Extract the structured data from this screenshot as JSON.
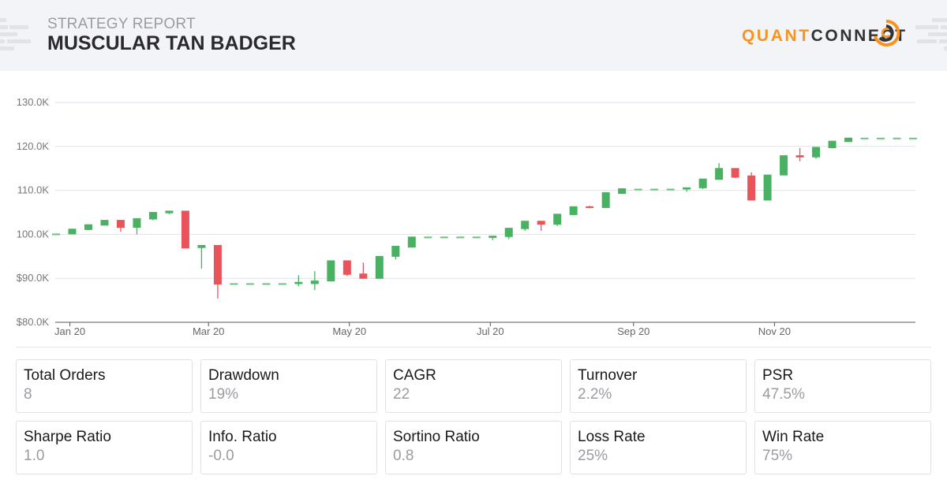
{
  "header": {
    "subtitle": "STRATEGY REPORT",
    "title": "MUSCULAR TAN BADGER",
    "logo_part1": "QUANT",
    "logo_part2": "CONNECT"
  },
  "colors": {
    "up": "#48b262",
    "down": "#e9545a",
    "grid": "#dde2ef",
    "brand_orange": "#f7931e"
  },
  "chart_data": {
    "type": "candlestick",
    "ylim": [
      80000,
      130000
    ],
    "y_ticks": [
      {
        "v": 80000,
        "label": "$80.0K"
      },
      {
        "v": 90000,
        "label": "$90.0K"
      },
      {
        "v": 100000,
        "label": "100.0K"
      },
      {
        "v": 110000,
        "label": "110.0K"
      },
      {
        "v": 120000,
        "label": "120.0K"
      },
      {
        "v": 130000,
        "label": "130.0K"
      }
    ],
    "x_ticks": [
      {
        "date": "2020-01-01",
        "label": "Jan 20"
      },
      {
        "date": "2020-03-01",
        "label": "Mar 20"
      },
      {
        "date": "2020-05-01",
        "label": "May 20"
      },
      {
        "date": "2020-07-01",
        "label": "Jul 20"
      },
      {
        "date": "2020-09-01",
        "label": "Sep 20"
      },
      {
        "date": "2020-11-01",
        "label": "Nov 20"
      }
    ],
    "grid": true,
    "columns": [
      "date",
      "open",
      "high",
      "low",
      "close"
    ],
    "candles": [
      [
        "2019-12-26",
        100000,
        100000,
        100000,
        100000
      ],
      [
        "2020-01-02",
        100000,
        101100,
        100000,
        101100
      ],
      [
        "2020-01-09",
        101000,
        102100,
        101000,
        102100
      ],
      [
        "2020-01-16",
        102000,
        103100,
        102000,
        103100
      ],
      [
        "2020-01-23",
        103100,
        103100,
        100600,
        101500
      ],
      [
        "2020-01-30",
        101500,
        103500,
        100000,
        103500
      ],
      [
        "2020-02-06",
        103400,
        104900,
        103200,
        104900
      ],
      [
        "2020-02-13",
        104800,
        105200,
        104600,
        105200
      ],
      [
        "2020-02-20",
        105200,
        105200,
        96800,
        96800
      ],
      [
        "2020-02-27",
        96900,
        97400,
        92200,
        97400
      ],
      [
        "2020-03-05",
        97400,
        97400,
        85400,
        88600
      ],
      [
        "2020-03-12",
        88700,
        88700,
        88700,
        88700
      ],
      [
        "2020-03-19",
        88700,
        88700,
        88700,
        88700
      ],
      [
        "2020-03-26",
        88700,
        88700,
        88700,
        88700
      ],
      [
        "2020-04-02",
        88700,
        88700,
        88700,
        88700
      ],
      [
        "2020-04-09",
        88700,
        90700,
        88200,
        89000
      ],
      [
        "2020-04-16",
        88700,
        91600,
        87300,
        89300
      ],
      [
        "2020-04-23",
        89300,
        93900,
        89300,
        93900
      ],
      [
        "2020-04-30",
        93900,
        93900,
        90500,
        90800
      ],
      [
        "2020-05-07",
        90900,
        93600,
        89900,
        89900
      ],
      [
        "2020-05-14",
        89900,
        94900,
        89900,
        94900
      ],
      [
        "2020-05-21",
        94900,
        97200,
        94300,
        97200
      ],
      [
        "2020-05-28",
        97000,
        99300,
        97000,
        99300
      ],
      [
        "2020-06-04",
        99300,
        99300,
        99300,
        99300
      ],
      [
        "2020-06-11",
        99300,
        99300,
        99300,
        99300
      ],
      [
        "2020-06-18",
        99300,
        99300,
        99300,
        99300
      ],
      [
        "2020-06-25",
        99300,
        99300,
        99300,
        99300
      ],
      [
        "2020-07-02",
        99200,
        99500,
        98700,
        99500
      ],
      [
        "2020-07-09",
        99400,
        101300,
        98900,
        101300
      ],
      [
        "2020-07-16",
        101200,
        102900,
        100800,
        102900
      ],
      [
        "2020-07-23",
        102900,
        102900,
        100800,
        102200
      ],
      [
        "2020-07-30",
        102200,
        104500,
        101900,
        104500
      ],
      [
        "2020-08-06",
        104400,
        106200,
        104400,
        106200
      ],
      [
        "2020-08-13",
        106200,
        106500,
        105900,
        106000
      ],
      [
        "2020-08-20",
        106000,
        109400,
        106000,
        109400
      ],
      [
        "2020-08-27",
        109200,
        110300,
        109200,
        110300
      ],
      [
        "2020-09-03",
        110200,
        110200,
        110200,
        110200
      ],
      [
        "2020-09-10",
        110200,
        110200,
        110200,
        110200
      ],
      [
        "2020-09-17",
        110200,
        110200,
        110200,
        110200
      ],
      [
        "2020-09-24",
        110200,
        110500,
        109700,
        110500
      ],
      [
        "2020-10-01",
        110500,
        112500,
        110300,
        112500
      ],
      [
        "2020-10-08",
        112400,
        116200,
        112400,
        114900
      ],
      [
        "2020-10-15",
        114900,
        114900,
        112800,
        112900
      ],
      [
        "2020-10-22",
        113200,
        114100,
        107700,
        107700
      ],
      [
        "2020-10-29",
        107700,
        113400,
        107700,
        113400
      ],
      [
        "2020-11-05",
        113400,
        117800,
        113400,
        117800
      ],
      [
        "2020-11-12",
        117800,
        119600,
        116600,
        117500
      ],
      [
        "2020-11-19",
        117500,
        119800,
        117200,
        119700
      ],
      [
        "2020-11-26",
        119600,
        121100,
        119600,
        121100
      ],
      [
        "2020-12-03",
        121000,
        122000,
        121000,
        121800
      ],
      [
        "2020-12-10",
        121800,
        121800,
        121800,
        121800
      ],
      [
        "2020-12-17",
        121800,
        121800,
        121800,
        121800
      ],
      [
        "2020-12-24",
        121800,
        121800,
        121800,
        121800
      ],
      [
        "2020-12-31",
        121800,
        121800,
        121800,
        121800
      ]
    ]
  },
  "stats": [
    {
      "label": "Total Orders",
      "value": "8"
    },
    {
      "label": "Drawdown",
      "value": "19%"
    },
    {
      "label": "CAGR",
      "value": "22"
    },
    {
      "label": "Turnover",
      "value": "2.2%"
    },
    {
      "label": "PSR",
      "value": "47.5%"
    },
    {
      "label": "Sharpe Ratio",
      "value": "1.0"
    },
    {
      "label": "Info. Ratio",
      "value": "-0.0"
    },
    {
      "label": "Sortino Ratio",
      "value": "0.8"
    },
    {
      "label": "Loss Rate",
      "value": "25%"
    },
    {
      "label": "Win Rate",
      "value": "75%"
    }
  ]
}
